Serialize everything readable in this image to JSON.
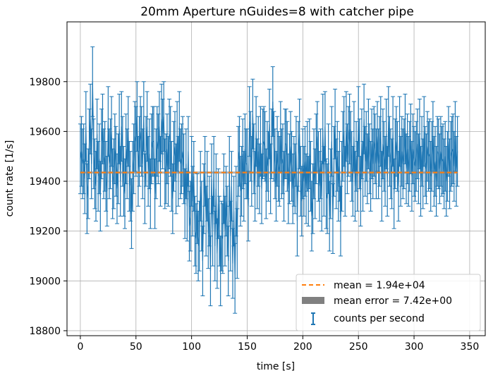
{
  "chart_data": {
    "type": "errorbar-line",
    "title": "20mm Aperture nGuides=8 with catcher pipe",
    "xlabel": "time [s]",
    "ylabel": "count rate [1/s]",
    "xlim": [
      -12,
      364
    ],
    "ylim": [
      18780,
      20040
    ],
    "xticks": [
      0,
      50,
      100,
      150,
      200,
      250,
      300,
      350
    ],
    "yticks": [
      18800,
      19000,
      19200,
      19400,
      19600,
      19800
    ],
    "xtick_labels": [
      "0",
      "50",
      "100",
      "150",
      "200",
      "250",
      "300",
      "350"
    ],
    "ytick_labels": [
      "18800",
      "19000",
      "19200",
      "19400",
      "19600",
      "19800"
    ],
    "grid": true,
    "legend_position": "lower-right",
    "x_step": 1,
    "x_start": 0,
    "series_values": [
      19490,
      19520,
      19470,
      19490,
      19410,
      19620,
      19330,
      19390,
      19550,
      19650,
      19470,
      19800,
      19510,
      19430,
      19380,
      19590,
      19420,
      19490,
      19340,
      19550,
      19610,
      19470,
      19500,
      19420,
      19360,
      19640,
      19470,
      19510,
      19600,
      19390,
      19430,
      19530,
      19480,
      19370,
      19450,
      19610,
      19400,
      19620,
      19520,
      19400,
      19350,
      19530,
      19470,
      19600,
      19420,
      19380,
      19270,
      19420,
      19490,
      19580,
      19560,
      19660,
      19440,
      19520,
      19600,
      19560,
      19470,
      19660,
      19370,
      19520,
      19620,
      19440,
      19510,
      19350,
      19530,
      19560,
      19560,
      19350,
      19470,
      19560,
      19530,
      19620,
      19440,
      19650,
      19590,
      19660,
      19430,
      19450,
      19530,
      19440,
      19590,
      19560,
      19420,
      19330,
      19500,
      19540,
      19410,
      19580,
      19440,
      19620,
      19470,
      19490,
      19520,
      19450,
      19310,
      19470,
      19300,
      19520,
      19220,
      19260,
      19440,
      19320,
      19420,
      19200,
      19170,
      19290,
      19140,
      19180,
      19380,
      19260,
      19080,
      19330,
      19440,
      19240,
      19380,
      19190,
      19280,
      19040,
      19410,
      19200,
      19440,
      19140,
      19370,
      19110,
      19310,
      19200,
      19040,
      19180,
      19170,
      19370,
      19200,
      19320,
      19240,
      19080,
      19440,
      19180,
      19380,
      19070,
      19280,
      19010,
      19320,
      19150,
      19480,
      19520,
      19360,
      19400,
      19510,
      19380,
      19530,
      19470,
      19470,
      19300,
      19640,
      19540,
      19440,
      19670,
      19490,
      19380,
      19600,
      19430,
      19520,
      19410,
      19560,
      19370,
      19550,
      19560,
      19540,
      19390,
      19500,
      19460,
      19630,
      19410,
      19550,
      19720,
      19540,
      19470,
      19380,
      19520,
      19460,
      19440,
      19580,
      19470,
      19490,
      19380,
      19550,
      19550,
      19500,
      19370,
      19450,
      19540,
      19460,
      19370,
      19440,
      19410,
      19520,
      19240,
      19500,
      19590,
      19400,
      19320,
      19470,
      19400,
      19480,
      19370,
      19500,
      19360,
      19510,
      19420,
      19260,
      19330,
      19470,
      19390,
      19530,
      19580,
      19460,
      19380,
      19470,
      19340,
      19610,
      19400,
      19620,
      19350,
      19330,
      19490,
      19260,
      19390,
      19560,
      19250,
      19480,
      19630,
      19430,
      19500,
      19380,
      19460,
      19240,
      19420,
      19540,
      19600,
      19400,
      19620,
      19490,
      19560,
      19610,
      19540,
      19460,
      19400,
      19580,
      19380,
      19500,
      19420,
      19640,
      19510,
      19360,
      19550,
      19420,
      19650,
      19480,
      19540,
      19450,
      19590,
      19490,
      19420,
      19550,
      19470,
      19560,
      19530,
      19470,
      19580,
      19470,
      19520,
      19600,
      19380,
      19550,
      19500,
      19440,
      19590,
      19400,
      19640,
      19520,
      19470,
      19430,
      19600,
      19350,
      19510,
      19560,
      19500,
      19380,
      19600,
      19440,
      19520,
      19470,
      19510,
      19610,
      19450,
      19530,
      19440,
      19500,
      19570,
      19420,
      19530,
      19480,
      19460,
      19500,
      19550,
      19450,
      19590,
      19400,
      19520,
      19430,
      19600,
      19480,
      19450,
      19540,
      19500,
      19510,
      19420,
      19500,
      19580,
      19440,
      19480,
      19400,
      19520,
      19510,
      19450,
      19520,
      19480,
      19490,
      19430,
      19500,
      19400,
      19460,
      19560,
      19430,
      19500,
      19520,
      19530,
      19460,
      19580,
      19440,
      19520
    ],
    "error_value": 140,
    "mean_value": 19435,
    "series": [
      {
        "name": "counts per second",
        "color": "#1f77b4"
      }
    ],
    "mean_line": {
      "label": "mean = 1.94e+04",
      "color": "#ff7f0e",
      "style": "dashed"
    },
    "mean_error_band": {
      "label": "mean error = 7.42e+00",
      "color": "#808080"
    }
  }
}
